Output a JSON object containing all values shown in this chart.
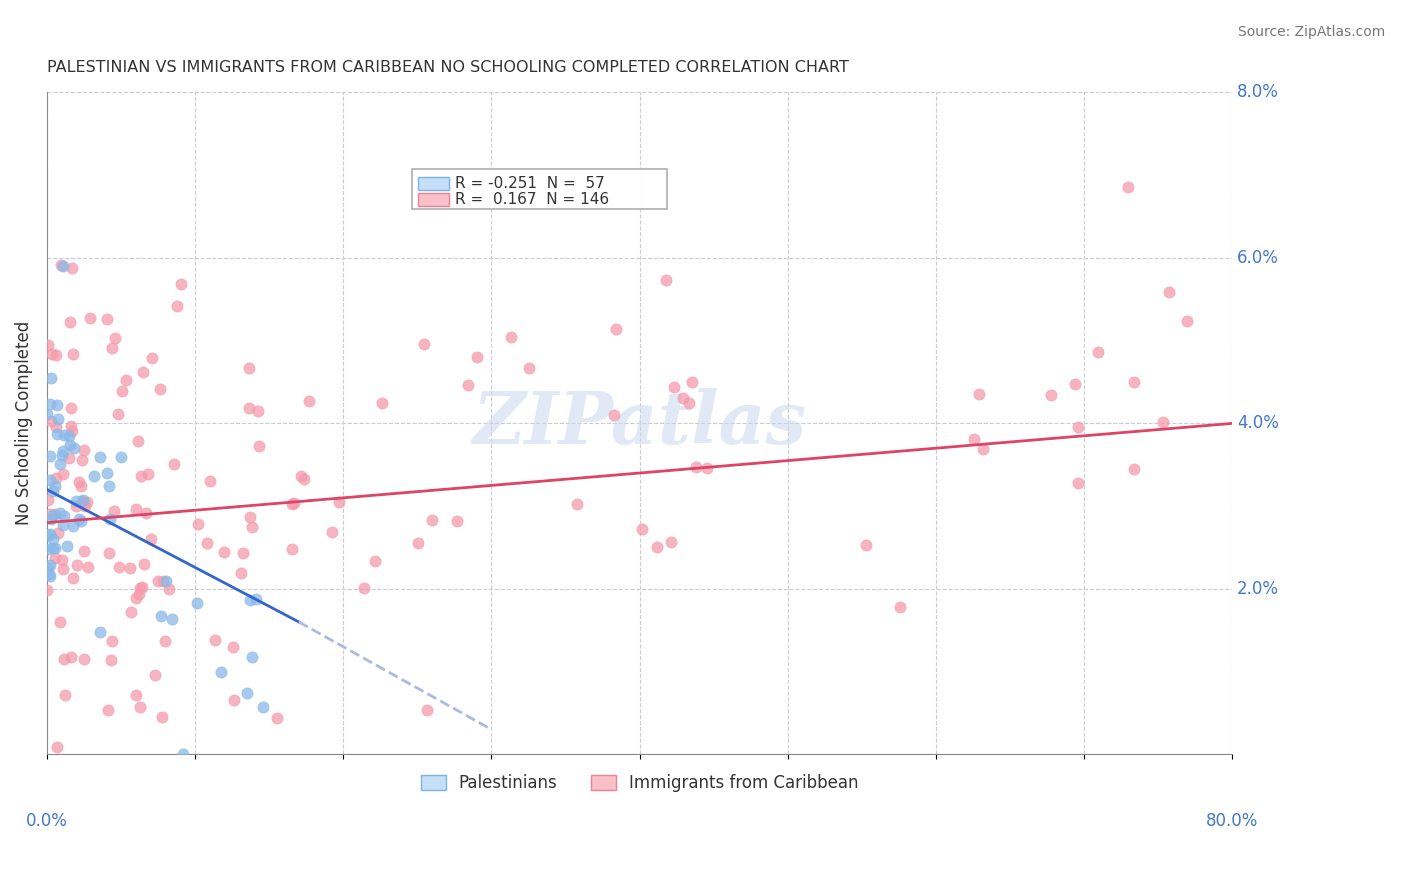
{
  "title": "PALESTINIAN VS IMMIGRANTS FROM CARIBBEAN NO SCHOOLING COMPLETED CORRELATION CHART",
  "source": "Source: ZipAtlas.com",
  "ylabel": "No Schooling Completed",
  "watermark": "ZIPatlas",
  "blue_color": "#89b8e8",
  "pink_color": "#f59aaa",
  "blue_line_color": "#3366cc",
  "pink_line_color": "#dd4466",
  "blue_dash_color": "#aabbdd",
  "background_color": "#ffffff",
  "grid_color": "#cccccc",
  "title_color": "#333333",
  "axis_label_color": "#4477cc",
  "xlim": [
    0.0,
    0.8
  ],
  "ylim": [
    0.0,
    0.08
  ],
  "yticks": [
    0.0,
    0.02,
    0.04,
    0.06,
    0.08
  ],
  "xticks": [
    0.0,
    0.1,
    0.2,
    0.3,
    0.4,
    0.5,
    0.6,
    0.7,
    0.8
  ],
  "blue_line": {
    "x": [
      0.0,
      0.17
    ],
    "y": [
      0.032,
      0.016
    ]
  },
  "blue_dash": {
    "x": [
      0.17,
      0.3
    ],
    "y": [
      0.016,
      0.003
    ]
  },
  "pink_line": {
    "x": [
      0.0,
      0.8
    ],
    "y": [
      0.028,
      0.04
    ]
  },
  "legend_entries": [
    {
      "label": "R = -0.251  N =  57",
      "face": "#c5dff7",
      "edge": "#7ab3e8"
    },
    {
      "label": "R =  0.167  N = 146",
      "face": "#f8c0c8",
      "edge": "#f08090"
    }
  ],
  "bottom_legend": [
    {
      "label": "Palestinians",
      "face": "#c5dff7",
      "edge": "#7ab3e8"
    },
    {
      "label": "Immigrants from Caribbean",
      "face": "#f8c0c8",
      "edge": "#f08090"
    }
  ]
}
